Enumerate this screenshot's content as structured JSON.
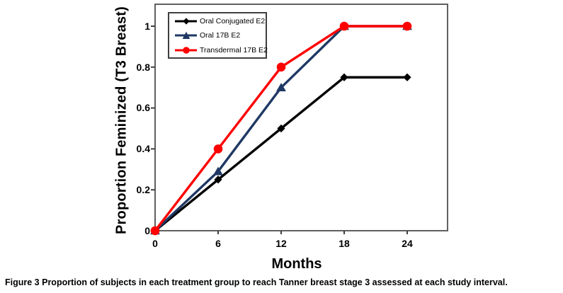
{
  "figure": {
    "caption_label": "Figure 3",
    "caption_text": "Proportion of subjects in each treatment group to reach Tanner breast stage 3 assessed at each study interval."
  },
  "chart_data": {
    "type": "line",
    "title": "",
    "xlabel": "Months",
    "ylabel": "Proportion Feminized (T3 Breast)",
    "x": [
      0,
      6,
      12,
      18,
      24
    ],
    "x_tick_labels": [
      "0",
      "6",
      "12",
      "18",
      "24"
    ],
    "y_ticks": [
      0,
      0.2,
      0.4,
      0.6,
      0.8,
      1
    ],
    "y_tick_labels": [
      "0",
      "0.2",
      "0.4",
      "0.6",
      "0.8",
      "1"
    ],
    "xlim": [
      0,
      27.8
    ],
    "ylim": [
      0,
      1.1
    ],
    "grid": false,
    "legend_position": "top-left-inside",
    "series": [
      {
        "name": "Oral Conjugated E2",
        "color": "#000000",
        "marker": "diamond",
        "values": [
          0,
          0.25,
          0.5,
          0.75,
          0.75
        ]
      },
      {
        "name": "Oral 17B E2",
        "color": "#1F3864",
        "marker": "triangle",
        "values": [
          0,
          0.29,
          0.7,
          1.0,
          1.0
        ]
      },
      {
        "name": "Transdermal 17B E2",
        "color": "#FF0000",
        "marker": "circle",
        "values": [
          0,
          0.4,
          0.8,
          1.0,
          1.0
        ]
      }
    ],
    "axis_color": "#606060",
    "tick_color": "#404040"
  }
}
